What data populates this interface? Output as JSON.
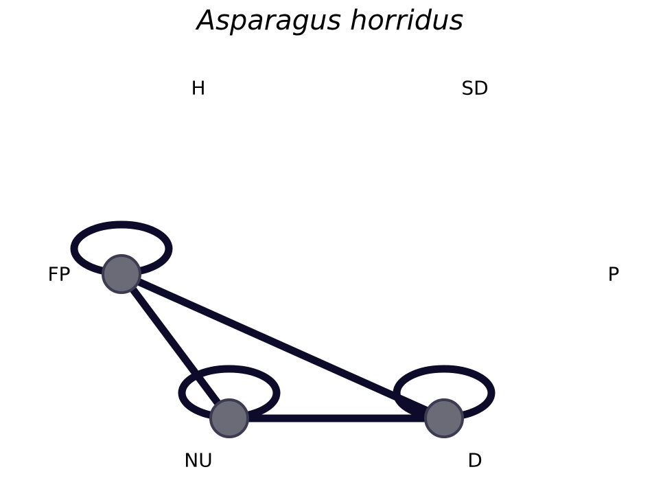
{
  "title": "Asparagus horridus",
  "colors": {
    "edge": "#0e0a29",
    "node_fill": "#6b6b78",
    "node_stroke": "#3d3a52",
    "background": "#ffffff"
  },
  "nodes": [
    {
      "id": "H",
      "label": "H",
      "present": false
    },
    {
      "id": "SD",
      "label": "SD",
      "present": false
    },
    {
      "id": "FP",
      "label": "FP",
      "present": true,
      "self_loop": true
    },
    {
      "id": "P",
      "label": "P",
      "present": false
    },
    {
      "id": "NU",
      "label": "NU",
      "present": true,
      "self_loop": true
    },
    {
      "id": "D",
      "label": "D",
      "present": true,
      "self_loop": true
    }
  ],
  "edges": [
    {
      "from": "FP",
      "to": "NU"
    },
    {
      "from": "FP",
      "to": "D"
    },
    {
      "from": "NU",
      "to": "D"
    }
  ]
}
